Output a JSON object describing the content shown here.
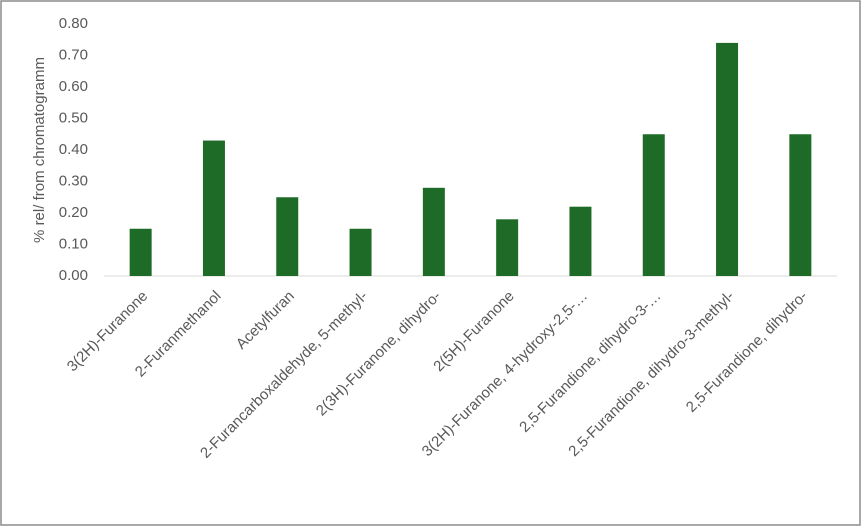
{
  "chart_data": {
    "type": "bar",
    "y_label": "% rel/ from chromatogramm",
    "categories": [
      "3(2H)-Furanone",
      "2-Furanmethanol",
      "Acetylfuran",
      "2-Furancarboxaldehyde, 5-methyl-",
      "2(3H)-Furanone, dihydro-",
      "2(5H)-Furanone",
      "3(2H)-Furanone, 4-hydroxy-2,5-…",
      "2,5-Furandione, dihydro-3-…",
      "2,5-Furandione, dihydro-3-methyl-",
      "2,5-Furandione, dihydro-"
    ],
    "values": [
      0.15,
      0.43,
      0.25,
      0.15,
      0.28,
      0.18,
      0.22,
      0.45,
      0.74,
      0.45
    ],
    "color": "#1e6b27",
    "ylim": [
      0,
      0.8
    ],
    "yticks": [
      {
        "value": 0,
        "label": "0.00"
      },
      {
        "value": 0.1,
        "label": "0.10"
      },
      {
        "value": 0.2,
        "label": "0.20"
      },
      {
        "value": 0.3,
        "label": "0.30"
      },
      {
        "value": 0.4,
        "label": "0.40"
      },
      {
        "value": 0.5,
        "label": "0.50"
      },
      {
        "value": 0.6,
        "label": "0.60"
      },
      {
        "value": 0.7,
        "label": "0.70"
      },
      {
        "value": 0.8,
        "label": "0.80"
      }
    ],
    "grid": false
  }
}
